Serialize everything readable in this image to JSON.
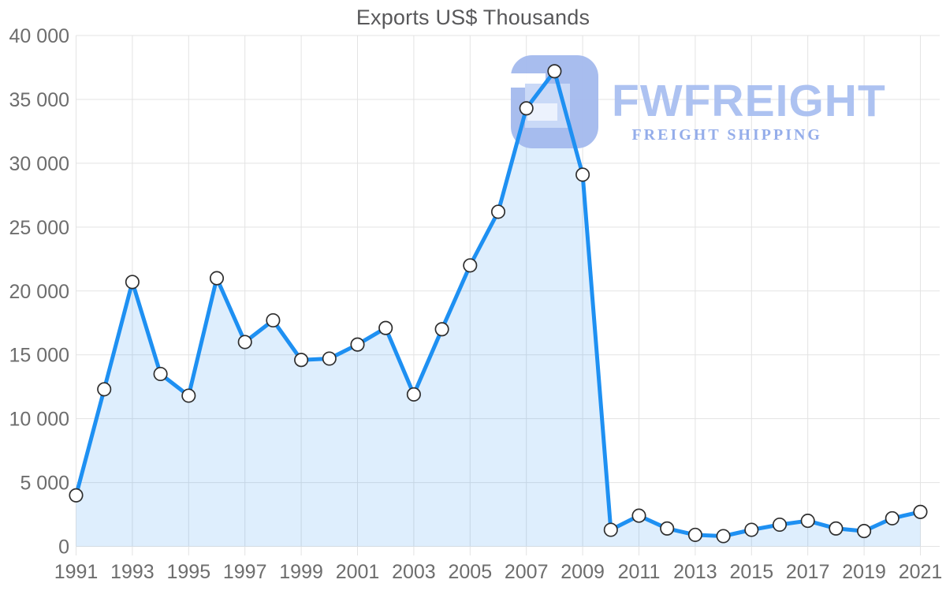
{
  "title": "Exports US$ Thousands",
  "watermark": {
    "brand": "FWFREIGHT",
    "tagline": "FREIGHT SHIPPING"
  },
  "colors": {
    "line": "#1e90f2",
    "area_fill": "rgba(33,140,242,0.15)",
    "marker_fill": "#ffffff",
    "marker_stroke": "#2e2e2e",
    "grid": "#e3e3e3",
    "tick_label": "#6d6d6d",
    "title": "#58585a",
    "logo_tile": "#a4baee",
    "logo_inner": "#c8d8f7",
    "logo_inner_light": "#edf3fd",
    "brand_text": "#a9bff1",
    "tagline_text": "#8fa9e9"
  },
  "chart_data": {
    "type": "area",
    "title": "Exports US$ Thousands",
    "series_name": "Exports",
    "x": [
      1991,
      1992,
      1993,
      1994,
      1995,
      1996,
      1997,
      1998,
      1999,
      2000,
      2001,
      2002,
      2003,
      2004,
      2005,
      2006,
      2007,
      2008,
      2009,
      2010,
      2011,
      2012,
      2013,
      2014,
      2015,
      2016,
      2017,
      2018,
      2019,
      2020,
      2021
    ],
    "values": [
      4000,
      12300,
      20700,
      13500,
      11800,
      21000,
      16000,
      17700,
      14600,
      14700,
      15800,
      17100,
      11900,
      17000,
      22000,
      26200,
      34300,
      37200,
      29100,
      1300,
      2400,
      1400,
      900,
      800,
      1300,
      1700,
      2000,
      1400,
      1200,
      2200,
      2700
    ],
    "xlabel": "",
    "ylabel": "",
    "ylim": [
      0,
      40000
    ],
    "y_ticks": [
      0,
      5000,
      10000,
      15000,
      20000,
      25000,
      30000,
      35000,
      40000
    ],
    "y_tick_format": "space-thousands",
    "x_ticks": [
      1991,
      1993,
      1995,
      1997,
      1999,
      2001,
      2003,
      2005,
      2007,
      2009,
      2011,
      2013,
      2015,
      2017,
      2019,
      2021
    ],
    "grid": true,
    "legend": "none",
    "marker": "circle"
  }
}
